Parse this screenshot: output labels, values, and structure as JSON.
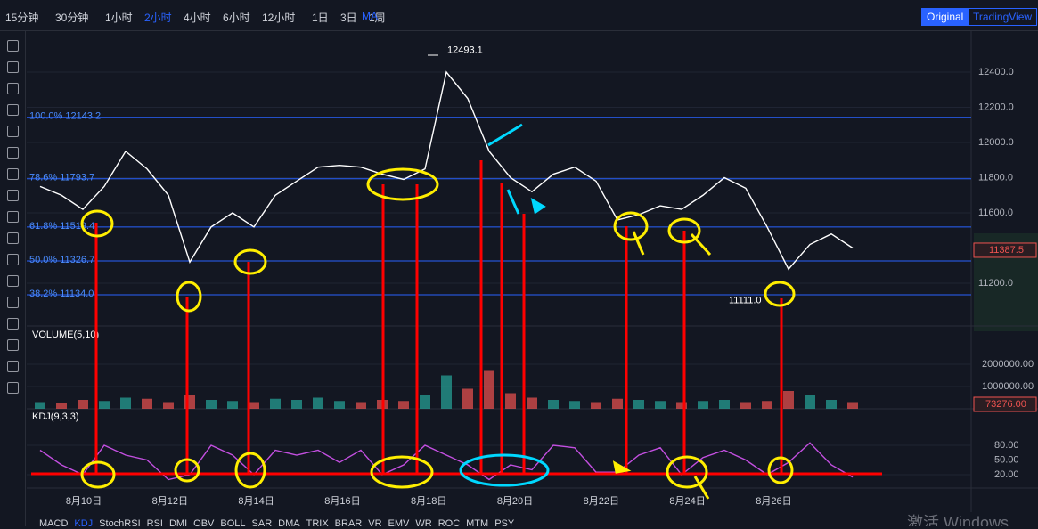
{
  "toolbar": {
    "intervals": [
      "15分钟",
      "30分钟",
      "1小时",
      "2小时",
      "4小时",
      "6小时",
      "12小时",
      "1日",
      "3日",
      "1周"
    ],
    "active_interval": 3,
    "indicator": "MA",
    "views": [
      "Original",
      "TradingView"
    ]
  },
  "chart_data": {
    "type": "line",
    "price_values": [
      11750,
      11700,
      11620,
      11750,
      11950,
      11850,
      11700,
      11320,
      11520,
      11600,
      11520,
      11700,
      11780,
      11860,
      11870,
      11860,
      11820,
      11790,
      11850,
      12400,
      12250,
      11950,
      11800,
      11720,
      11820,
      11860,
      11780,
      11560,
      11590,
      11640,
      11620,
      11700,
      11800,
      11740,
      11520,
      11280,
      11420,
      11480,
      11400
    ],
    "volume_values": [
      300000,
      250000,
      400000,
      350000,
      500000,
      450000,
      300000,
      600000,
      400000,
      350000,
      300000,
      450000,
      400000,
      500000,
      350000,
      300000,
      400000,
      350000,
      600000,
      1500000,
      900000,
      1700000,
      700000,
      500000,
      400000,
      350000,
      300000,
      450000,
      400000,
      350000,
      300000,
      350000,
      400000,
      300000,
      350000,
      800000,
      600000,
      400000,
      300000
    ],
    "kdj_values": [
      70,
      40,
      20,
      80,
      60,
      50,
      10,
      20,
      80,
      60,
      20,
      70,
      60,
      70,
      45,
      70,
      20,
      40,
      80,
      60,
      40,
      10,
      40,
      30,
      80,
      75,
      25,
      25,
      60,
      75,
      20,
      55,
      70,
      50,
      20,
      45,
      85,
      40,
      15
    ],
    "ylim": [
      11000,
      12550
    ],
    "yticks": [
      {
        "value": 11200,
        "label": "11200.0"
      },
      {
        "value": 11400,
        "label": "11400.0"
      },
      {
        "value": 11600,
        "label": "11600.0"
      },
      {
        "value": 11800,
        "label": "11800.0"
      },
      {
        "value": 12000,
        "label": "12000.0"
      },
      {
        "value": 12200,
        "label": "12200.0"
      },
      {
        "value": 12400,
        "label": "12400.0"
      }
    ],
    "fib_levels": [
      {
        "value": 12143.2,
        "label": "100.0% 12143.2"
      },
      {
        "value": 11793.7,
        "label": "78.6% 11793.7"
      },
      {
        "value": 11519.4,
        "label": "61.8% 11519.4"
      },
      {
        "value": 11326.7,
        "label": "50.0% 11326.7"
      },
      {
        "value": 11134.0,
        "label": "38.2% 11134.0"
      }
    ],
    "high_label": {
      "value": 12493.1,
      "label": "12493.1"
    },
    "low_label": {
      "value": 11111.0,
      "label": "11111.0"
    },
    "last_price": {
      "value": 11387.5,
      "label": "11387.5"
    },
    "volume_title": "VOLUME(5,10)",
    "volume_ticks": [
      {
        "value": 1000000,
        "label": "1000000.00"
      },
      {
        "value": 2000000,
        "label": "2000000.00"
      }
    ],
    "last_volume": {
      "value": 73276,
      "label": "73276.00"
    },
    "kdj_title": "KDJ(9,3,3)",
    "kdj_ticks": [
      {
        "value": 20,
        "label": "20.00"
      },
      {
        "value": 50,
        "label": "50.00"
      },
      {
        "value": 80,
        "label": "80.00"
      }
    ],
    "dates": [
      "8月10日",
      "8月12日",
      "8月14日",
      "8月16日",
      "8月18日",
      "8月20日",
      "8月22日",
      "8月24日",
      "8月26日"
    ]
  },
  "indicator_tabs": [
    "MACD",
    "KDJ",
    "StochRSI",
    "RSI",
    "DMI",
    "OBV",
    "BOLL",
    "SAR",
    "DMA",
    "TRIX",
    "BRAR",
    "VR",
    "EMV",
    "WR",
    "ROC",
    "MTM",
    "PSY"
  ],
  "watermark": "激活 Windows"
}
